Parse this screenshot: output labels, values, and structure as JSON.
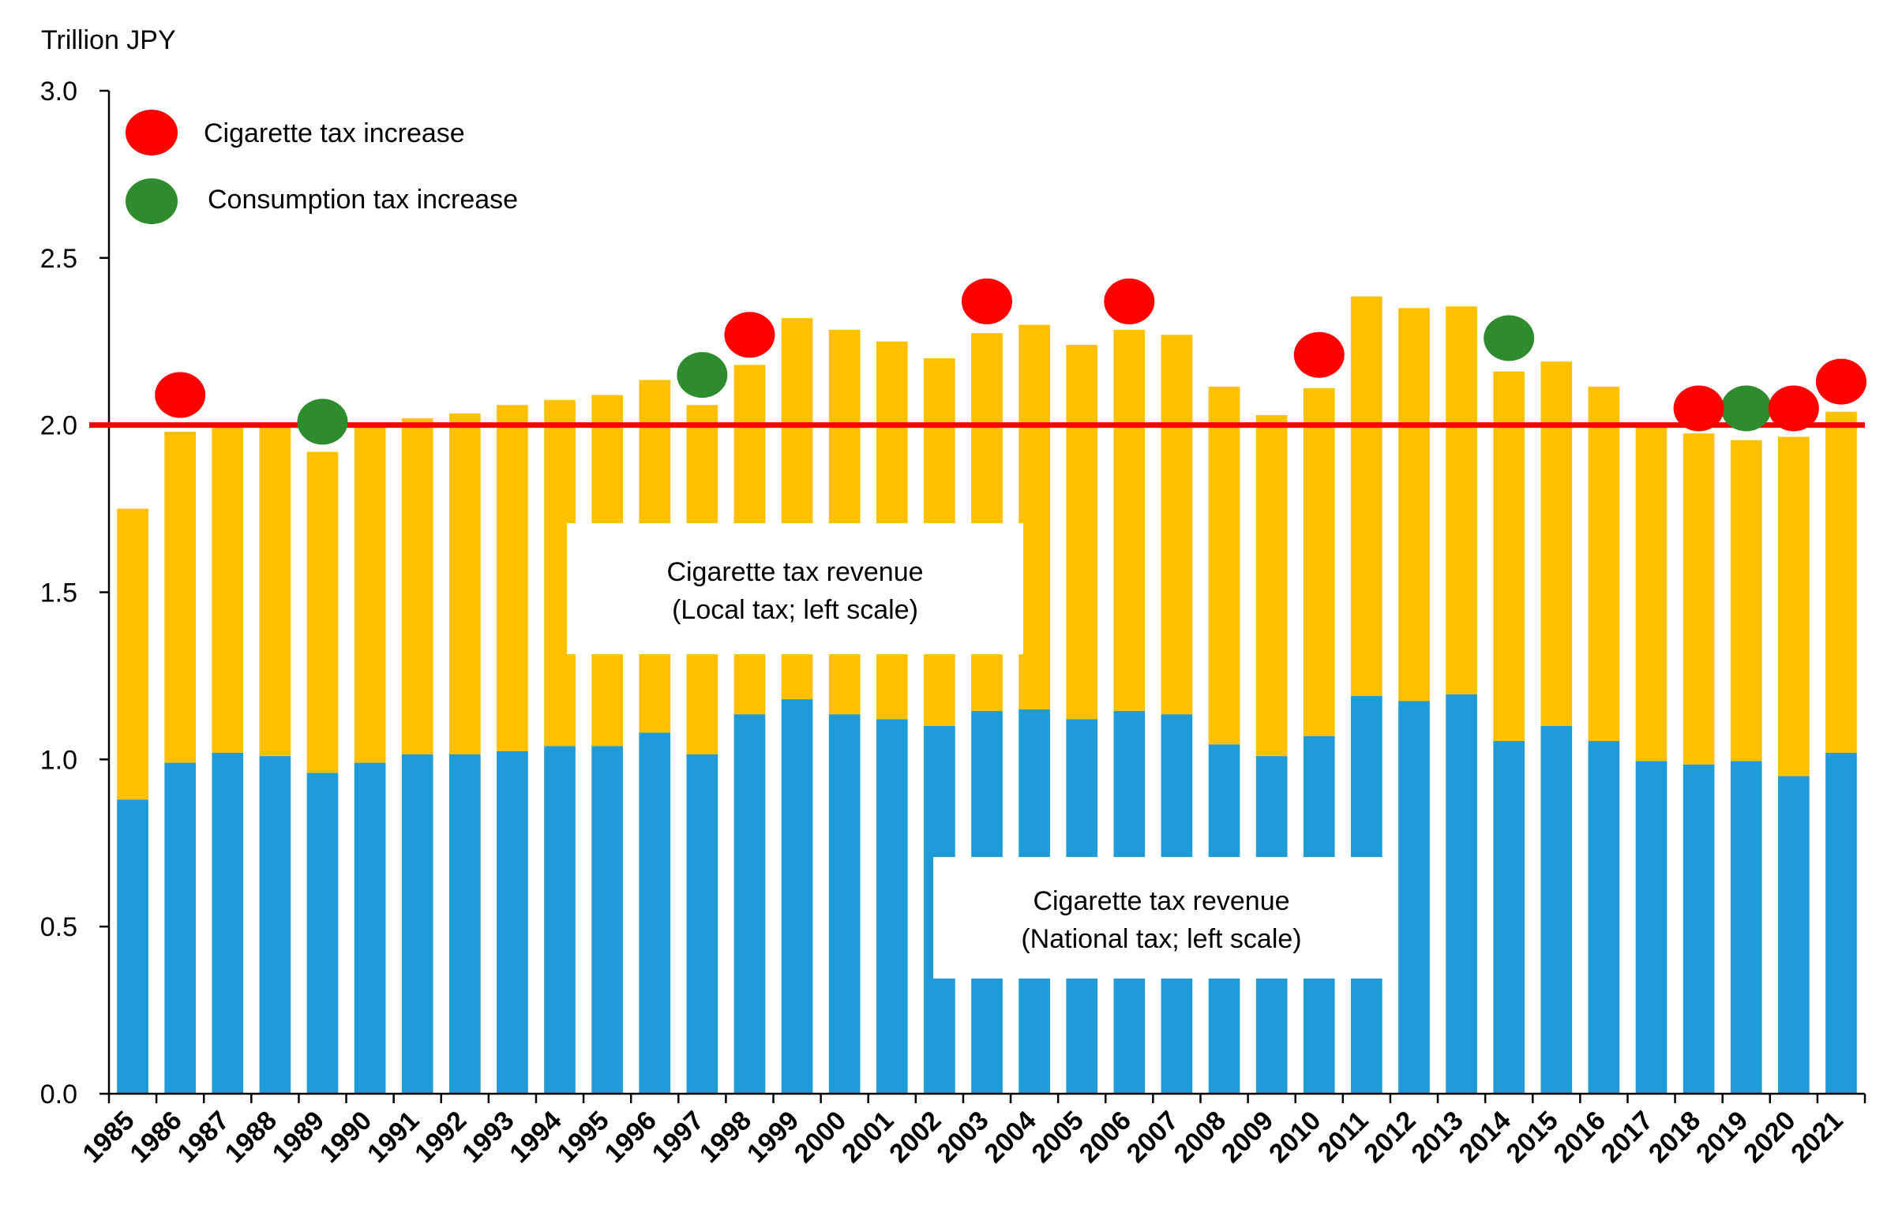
{
  "chart_data": {
    "type": "bar",
    "stacked": true,
    "ylabel": "Trillion JPY",
    "ylim": [
      0,
      3.0
    ],
    "yticks": [
      "0.0",
      "0.5",
      "1.0",
      "1.5",
      "2.0",
      "2.5",
      "3.0"
    ],
    "categories": [
      "1985",
      "1986",
      "1987",
      "1988",
      "1989",
      "1990",
      "1991",
      "1992",
      "1993",
      "1994",
      "1995",
      "1996",
      "1997",
      "1998",
      "1999",
      "2000",
      "2001",
      "2002",
      "2003",
      "2004",
      "2005",
      "2006",
      "2007",
      "2008",
      "2009",
      "2010",
      "2011",
      "2012",
      "2013",
      "2014",
      "2015",
      "2016",
      "2017",
      "2018",
      "2019",
      "2020",
      "2021"
    ],
    "series": [
      {
        "name": "Cigarette tax revenue (National tax; left scale)",
        "color": "#1f9bd7",
        "values": [
          0.88,
          0.99,
          1.02,
          1.01,
          0.96,
          0.99,
          1.015,
          1.015,
          1.025,
          1.04,
          1.04,
          1.08,
          1.015,
          1.135,
          1.18,
          1.135,
          1.12,
          1.1,
          1.145,
          1.15,
          1.12,
          1.145,
          1.135,
          1.045,
          1.01,
          1.07,
          1.19,
          1.175,
          1.195,
          1.055,
          1.1,
          1.055,
          0.995,
          0.985,
          0.995,
          0.95,
          1.02
        ]
      },
      {
        "name": "Cigarette tax revenue (Local tax; left scale)",
        "color": "#ffc000",
        "values": [
          0.87,
          0.99,
          0.98,
          0.99,
          0.96,
          1.01,
          1.005,
          1.02,
          1.035,
          1.035,
          1.05,
          1.055,
          1.045,
          1.045,
          1.14,
          1.15,
          1.13,
          1.1,
          1.13,
          1.15,
          1.12,
          1.14,
          1.135,
          1.07,
          1.02,
          1.04,
          1.195,
          1.175,
          1.16,
          1.105,
          1.09,
          1.06,
          1.0,
          0.99,
          0.96,
          1.015,
          1.02
        ]
      }
    ],
    "reference_line": {
      "value": 2.0,
      "color": "#ff0000"
    },
    "markers": {
      "cigarette_tax_increase": {
        "label": "Cigarette tax increase",
        "color": "#ff0000",
        "points": [
          {
            "year": "1986",
            "y": 2.09
          },
          {
            "year": "1998",
            "y": 2.27
          },
          {
            "year": "2003",
            "y": 2.37
          },
          {
            "year": "2006",
            "y": 2.37
          },
          {
            "year": "2010",
            "y": 2.21
          },
          {
            "year": "2018",
            "y": 2.05
          },
          {
            "year": "2020",
            "y": 2.05
          },
          {
            "year": "2021",
            "y": 2.13
          }
        ]
      },
      "consumption_tax_increase": {
        "label": "Consumption tax increase",
        "color": "#2e8b2e",
        "points": [
          {
            "year": "1989",
            "y": 2.01
          },
          {
            "year": "1997",
            "y": 2.15
          },
          {
            "year": "2014",
            "y": 2.26
          },
          {
            "year": "2019",
            "y": 2.05
          }
        ]
      }
    },
    "annotations": {
      "local": [
        "Cigarette tax revenue",
        "(Local tax; left scale)"
      ],
      "national": [
        "Cigarette tax revenue",
        "(National tax; left scale)"
      ]
    }
  }
}
